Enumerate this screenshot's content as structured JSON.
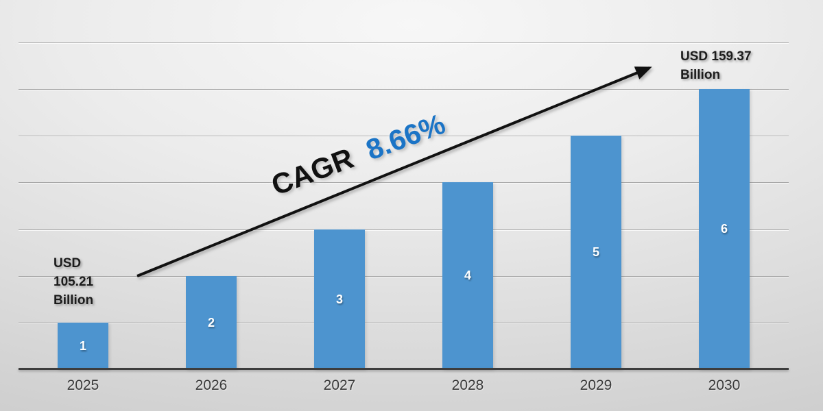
{
  "chart_data": {
    "type": "bar",
    "title": "",
    "xlabel": "",
    "ylabel": "",
    "categories": [
      "2025",
      "2026",
      "2027",
      "2028",
      "2029",
      "2030"
    ],
    "values": [
      1,
      2,
      3,
      4,
      5,
      6
    ],
    "bar_value_labels": [
      "1",
      "2",
      "3",
      "4",
      "5",
      "6"
    ],
    "ylim": [
      0,
      7
    ],
    "grid": true,
    "legend_position": "none",
    "colors": {
      "bar": "#4D94CF",
      "bar_label": "#FFFFFF",
      "axis_line": "#3D3D3D",
      "tick_label": "#3B3B3B",
      "annotation_text": "#1C1C1C",
      "cagr_prefix": "#111111",
      "cagr_value": "#1B74C6",
      "arrow": "#111111"
    },
    "annotations": {
      "start_value": {
        "text": "USD 105.21 Billion",
        "lines": [
          "USD",
          "105.21",
          "Billion"
        ],
        "attached_to": "2025"
      },
      "end_value": {
        "text": "USD 159.37 Billion",
        "lines": [
          "USD 159.37",
          "Billion"
        ],
        "attached_to": "2030"
      },
      "cagr": {
        "prefix": "CAGR",
        "value": "8.66%"
      }
    }
  }
}
